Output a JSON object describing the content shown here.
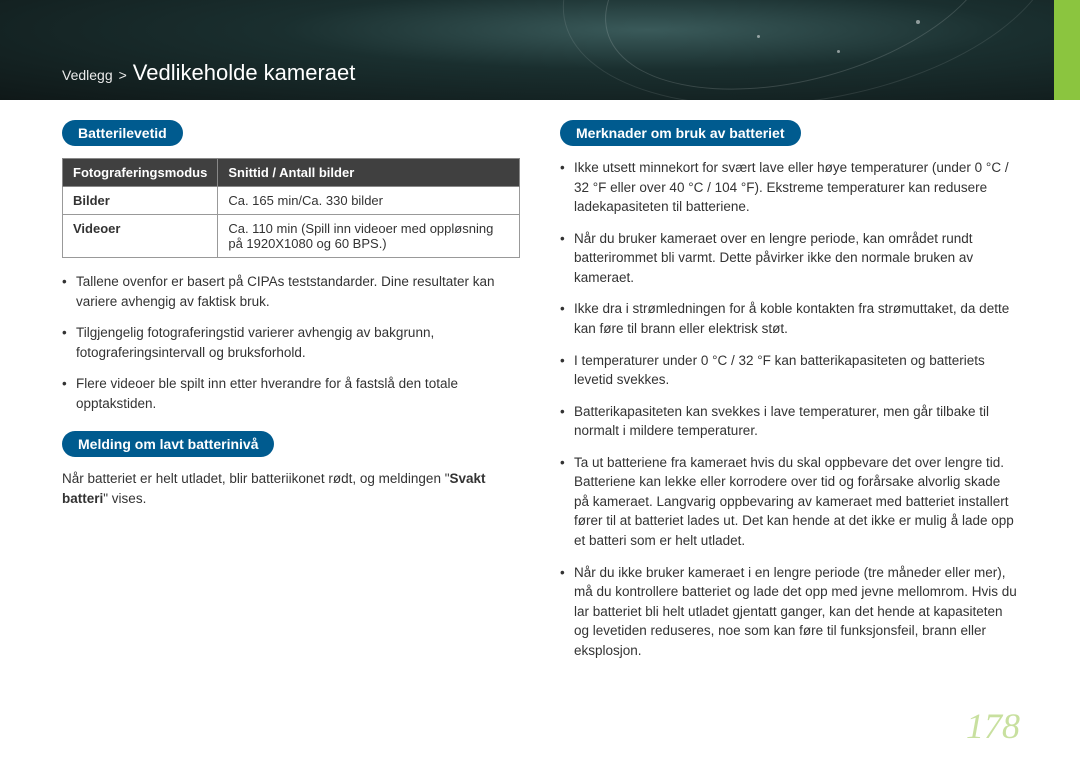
{
  "header": {
    "breadcrumb_section": "Vedlegg",
    "breadcrumb_sep": ">",
    "breadcrumb_title": "Vedlikeholde kameraet",
    "accent_color": "#8bc53f",
    "bg_gradient_inner": "#3a5a5a",
    "bg_gradient_outer": "#0f1818"
  },
  "left": {
    "section1": {
      "heading": "Batterilevetid",
      "table": {
        "header_bg": "#404040",
        "columns": [
          "Fotograferingsmodus",
          "Snittid / Antall bilder"
        ],
        "rows": [
          {
            "label": "Bilder",
            "value": "Ca. 165 min/Ca. 330 bilder"
          },
          {
            "label": "Videoer",
            "value": "Ca. 110 min (Spill inn videoer med oppløsning på 1920X1080 og 60 BPS.)"
          }
        ]
      },
      "bullets": [
        "Tallene ovenfor er basert på CIPAs teststandarder. Dine resultater kan variere avhengig av faktisk bruk.",
        "Tilgjengelig fotograferingstid varierer avhengig av bakgrunn, fotograferingsintervall og bruksforhold.",
        "Flere videoer ble spilt inn etter hverandre for å fastslå den totale opptakstiden."
      ]
    },
    "section2": {
      "heading": "Melding om lavt batterinivå",
      "para_pre": "Når batteriet er helt utladet, blir batteriikonet rødt, og meldingen \"",
      "para_bold": "Svakt batteri",
      "para_post": "\" vises."
    }
  },
  "right": {
    "heading": "Merknader om bruk av batteriet",
    "bullets": [
      "Ikke utsett minnekort for svært lave eller høye temperaturer (under 0 °C / 32 °F eller over 40 °C / 104 °F). Ekstreme temperaturer kan redusere ladekapasiteten til batteriene.",
      "Når du bruker kameraet over en lengre periode, kan området rundt batterirommet bli varmt. Dette påvirker ikke den normale bruken av kameraet.",
      "Ikke dra i strømledningen for å koble kontakten fra strømuttaket, da dette kan føre til brann eller elektrisk støt.",
      "I temperaturer under 0 °C / 32 °F kan batterikapasiteten og batteriets levetid svekkes.",
      "Batterikapasiteten kan svekkes i lave temperaturer, men går tilbake til normalt i mildere temperaturer.",
      "Ta ut batteriene fra kameraet hvis du skal oppbevare det over lengre tid. Batteriene kan lekke eller korrodere over tid og forårsake alvorlig skade på kameraet. Langvarig oppbevaring av kameraet med batteriet installert fører til at batteriet lades ut. Det kan hende at det ikke er mulig å lade opp et batteri som er helt utladet.",
      "Når du ikke bruker kameraet i en lengre periode (tre måneder eller mer), må du kontrollere batteriet og lade det opp med jevne mellomrom. Hvis du lar batteriet bli helt utladet gjentatt ganger, kan det hende at kapasiteten og levetiden reduseres, noe som kan føre til funksjonsfeil, brann eller eksplosjon."
    ]
  },
  "page_number": "178",
  "styles": {
    "pill_bg": "#005b8f",
    "page_no_color": "#c8e09f",
    "body_font_size": 13.5
  }
}
